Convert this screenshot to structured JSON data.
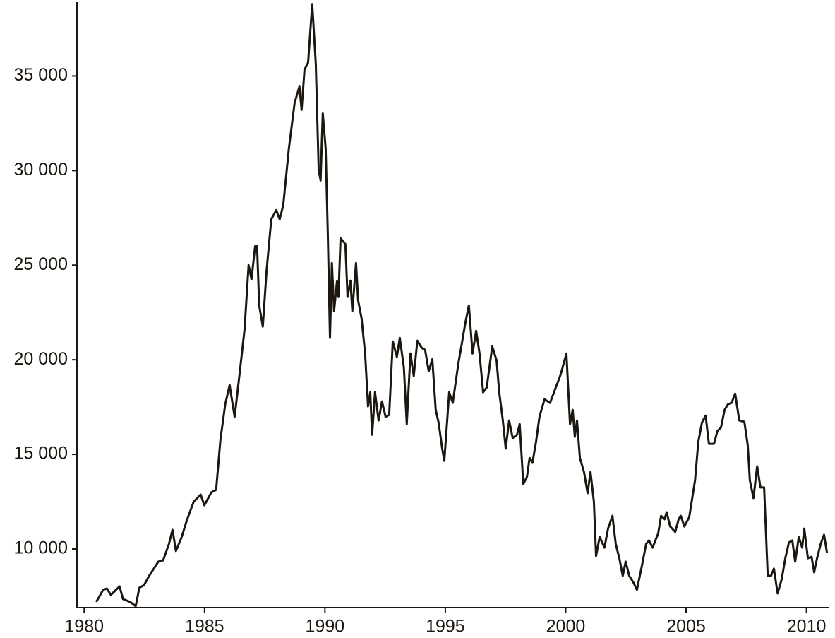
{
  "chart_data": {
    "type": "line",
    "color": "#1c1710",
    "x": [
      1980.5,
      1980.79,
      1980.94,
      1981.11,
      1981.47,
      1981.61,
      1981.91,
      1982.14,
      1982.29,
      1982.49,
      1982.7,
      1983.08,
      1983.28,
      1983.52,
      1983.67,
      1983.81,
      1984.05,
      1984.25,
      1984.55,
      1984.84,
      1984.99,
      1985.28,
      1985.48,
      1985.66,
      1985.86,
      1986.04,
      1986.25,
      1986.45,
      1986.66,
      1986.83,
      1986.95,
      1987.1,
      1987.18,
      1987.27,
      1987.42,
      1987.57,
      1987.77,
      1987.98,
      1988.12,
      1988.27,
      1988.5,
      1988.74,
      1988.94,
      1989.03,
      1989.15,
      1989.3,
      1989.47,
      1989.62,
      1989.74,
      1989.82,
      1989.91,
      1990.03,
      1990.12,
      1990.21,
      1990.29,
      1990.38,
      1990.5,
      1990.56,
      1990.65,
      1990.85,
      1990.94,
      1991.06,
      1991.14,
      1991.29,
      1991.38,
      1991.52,
      1991.67,
      1991.79,
      1991.88,
      1991.96,
      1992.08,
      1992.23,
      1992.37,
      1992.52,
      1992.67,
      1992.82,
      1992.99,
      1993.11,
      1993.28,
      1993.4,
      1993.55,
      1993.69,
      1993.84,
      1994.02,
      1994.16,
      1994.31,
      1994.46,
      1994.6,
      1994.72,
      1994.87,
      1994.96,
      1995.16,
      1995.31,
      1995.54,
      1995.69,
      1995.84,
      1995.98,
      1996.13,
      1996.28,
      1996.42,
      1996.57,
      1996.72,
      1996.95,
      1997.13,
      1997.24,
      1997.39,
      1997.51,
      1997.65,
      1997.8,
      1997.98,
      1998.09,
      1998.24,
      1998.39,
      1998.5,
      1998.62,
      1998.77,
      1998.91,
      1999.12,
      1999.35,
      1999.79,
      2000.03,
      2000.18,
      2000.29,
      2000.38,
      2000.47,
      2000.59,
      2000.76,
      2000.91,
      2001.03,
      2001.17,
      2001.26,
      2001.41,
      2001.61,
      2001.76,
      2001.94,
      2002.08,
      2002.23,
      2002.37,
      2002.49,
      2002.64,
      2002.82,
      2002.96,
      2003.17,
      2003.34,
      2003.46,
      2003.61,
      2003.84,
      2003.96,
      2004.11,
      2004.19,
      2004.34,
      2004.55,
      2004.69,
      2004.78,
      2004.93,
      2005.13,
      2005.37,
      2005.51,
      2005.66,
      2005.81,
      2005.95,
      2006.16,
      2006.3,
      2006.45,
      2006.6,
      2006.74,
      2006.89,
      2007.04,
      2007.21,
      2007.42,
      2007.56,
      2007.65,
      2007.8,
      2007.95,
      2008.09,
      2008.24,
      2008.39,
      2008.53,
      2008.65,
      2008.8,
      2008.97,
      2009.12,
      2009.27,
      2009.41,
      2009.53,
      2009.68,
      2009.82,
      2009.91,
      2010.06,
      2010.21,
      2010.32,
      2010.44,
      2010.59,
      2010.73,
      2010.85
    ],
    "values": [
      7200,
      7840,
      7910,
      7575,
      8020,
      7350,
      7200,
      6980,
      7950,
      8100,
      8580,
      9330,
      9400,
      10260,
      11010,
      9890,
      10630,
      11460,
      12500,
      12870,
      12310,
      12985,
      13130,
      15780,
      17650,
      18660,
      16980,
      19220,
      21570,
      25000,
      24250,
      26000,
      26000,
      22870,
      21750,
      24630,
      27420,
      27910,
      27420,
      28170,
      31150,
      33580,
      34440,
      33210,
      35330,
      35710,
      38800,
      35630,
      30040,
      29480,
      33020,
      31150,
      26680,
      21160,
      25110,
      22570,
      24140,
      23320,
      26420,
      26120,
      23320,
      24180,
      22570,
      25110,
      23130,
      22200,
      20330,
      17540,
      18280,
      16040,
      18280,
      16790,
      17800,
      16980,
      17090,
      20970,
      20150,
      21160,
      19590,
      16610,
      20330,
      19140,
      21010,
      20630,
      20520,
      19400,
      20030,
      17350,
      16680,
      15300,
      14660,
      18280,
      17720,
      19780,
      20900,
      22010,
      22870,
      20330,
      21530,
      20330,
      18280,
      18540,
      20710,
      19960,
      18280,
      16790,
      15300,
      16790,
      15860,
      16040,
      16600,
      13430,
      13810,
      14810,
      14550,
      15670,
      16980,
      17910,
      17720,
      19220,
      20330,
      16600,
      17350,
      15930,
      16790,
      14810,
      14070,
      12950,
      14070,
      12500,
      9630,
      10630,
      10070,
      11080,
      11750,
      10260,
      9510,
      8580,
      9330,
      8580,
      8210,
      7840,
      9140,
      10260,
      10450,
      10070,
      10820,
      11750,
      11570,
      11940,
      11190,
      10900,
      11570,
      11750,
      11190,
      11680,
      13620,
      15670,
      16680,
      17050,
      15560,
      15560,
      16230,
      16420,
      17350,
      17650,
      17720,
      18210,
      16790,
      16720,
      15480,
      13620,
      12690,
      14370,
      13250,
      13250,
      8580,
      8580,
      8960,
      7650,
      8400,
      9510,
      10340,
      10450,
      9330,
      10630,
      10070,
      11080,
      9510,
      9590,
      8770,
      9510,
      10260,
      10750,
      9810
    ],
    "xlim": [
      1979.7,
      2010.95
    ],
    "xticks": [
      1980,
      1985,
      1990,
      1995,
      2000,
      2005,
      2010
    ],
    "ylim": [
      6900,
      38900
    ],
    "yticks": [
      {
        "value": 10000,
        "label": "10 000"
      },
      {
        "value": 15000,
        "label": "15 000"
      },
      {
        "value": 20000,
        "label": "20 000"
      },
      {
        "value": 25000,
        "label": "25 000"
      },
      {
        "value": 30000,
        "label": "30 000"
      },
      {
        "value": 35000,
        "label": "35 000"
      }
    ]
  }
}
